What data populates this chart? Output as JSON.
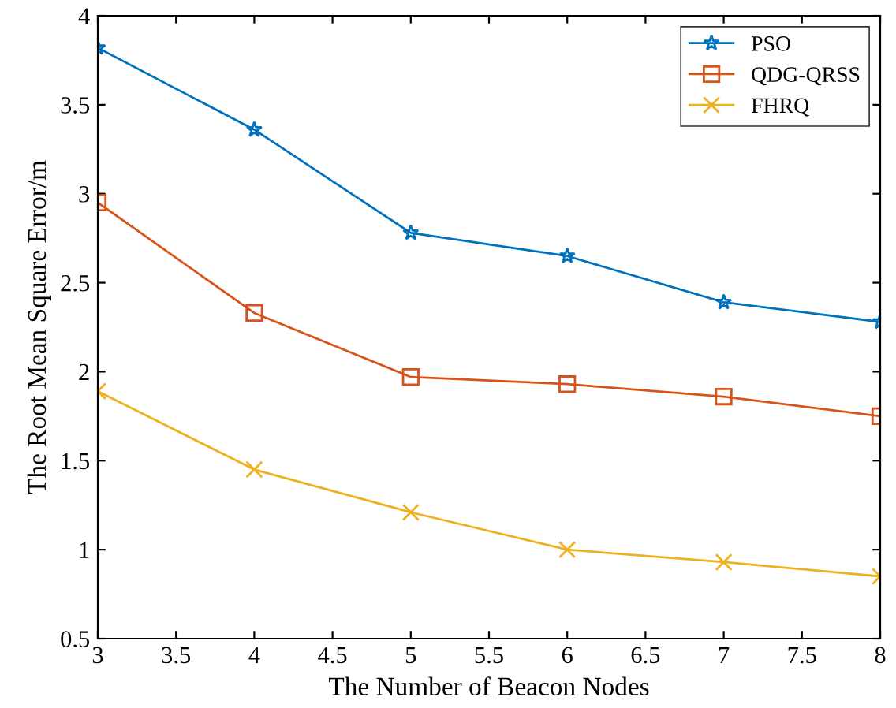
{
  "chart_data": {
    "type": "line",
    "xlabel": "The Number of Beacon Nodes",
    "ylabel": "The Root Mean Square Error/m",
    "x": [
      3,
      4,
      5,
      6,
      7,
      8
    ],
    "series": [
      {
        "name": "PSO",
        "color": "#0072bd",
        "marker": "star",
        "values": [
          3.82,
          3.36,
          2.78,
          2.65,
          2.39,
          2.28
        ]
      },
      {
        "name": "QDG-QRSS",
        "color": "#d95319",
        "marker": "square",
        "values": [
          2.95,
          2.33,
          1.97,
          1.93,
          1.86,
          1.75
        ]
      },
      {
        "name": "FHRQ",
        "color": "#edb120",
        "marker": "cross",
        "values": [
          1.89,
          1.45,
          1.21,
          1.0,
          0.93,
          0.85
        ]
      }
    ],
    "xlim": [
      3,
      8
    ],
    "xticks": [
      3,
      3.5,
      4,
      4.5,
      5,
      5.5,
      6,
      6.5,
      7,
      7.5,
      8
    ],
    "ylim": [
      0.5,
      4
    ],
    "yticks": [
      0.5,
      1,
      1.5,
      2,
      2.5,
      3,
      3.5,
      4
    ],
    "grid": false,
    "legend": "top right",
    "line_style": "solid"
  }
}
